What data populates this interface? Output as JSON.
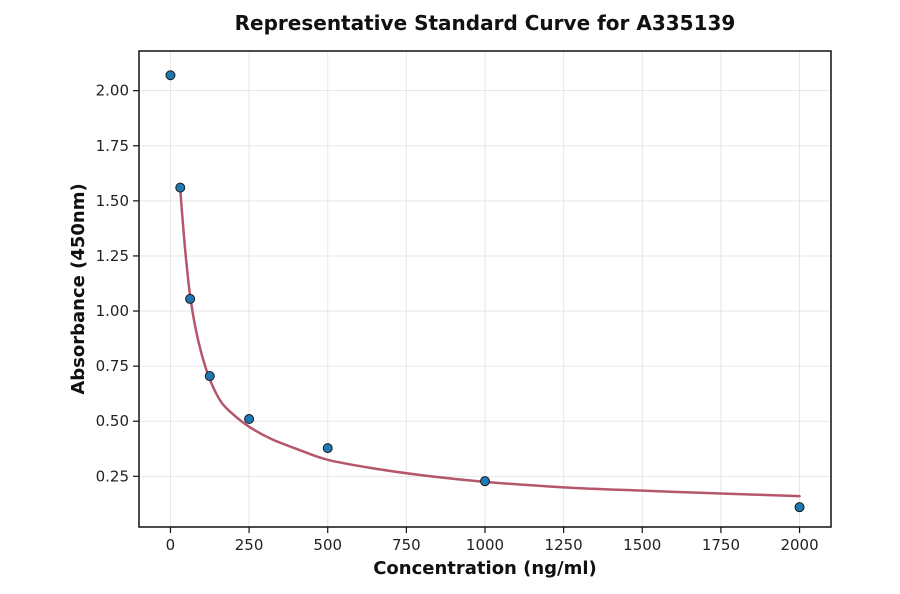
{
  "chart_data": {
    "type": "scatter",
    "title": "Representative Standard Curve for A335139",
    "xlabel": "Concentration (ng/ml)",
    "ylabel": "Absorbance (450nm)",
    "xlim": [
      -100,
      2100
    ],
    "ylim": [
      0.02,
      2.18
    ],
    "xticks": [
      0,
      250,
      500,
      750,
      1000,
      1250,
      1500,
      1750,
      2000
    ],
    "yticks": [
      0.25,
      0.5,
      0.75,
      1.0,
      1.25,
      1.5,
      1.75,
      2.0
    ],
    "xtick_labels": [
      "0",
      "250",
      "500",
      "750",
      "1000",
      "1250",
      "1500",
      "1750",
      "2000"
    ],
    "ytick_labels": [
      "0.25",
      "0.50",
      "0.75",
      "1.00",
      "1.25",
      "1.50",
      "1.75",
      "2.00"
    ],
    "grid": true,
    "points": {
      "x": [
        0,
        31.25,
        62.5,
        125,
        250,
        500,
        1000,
        2000
      ],
      "y": [
        2.07,
        1.56,
        1.055,
        0.705,
        0.51,
        0.378,
        0.228,
        0.11
      ],
      "color": "#1f77b4"
    },
    "fit_curve": {
      "x": [
        31.25,
        40,
        50,
        62.5,
        80,
        100,
        125,
        160,
        200,
        250,
        320,
        400,
        500,
        650,
        800,
        1000,
        1250,
        1500,
        1750,
        2000
      ],
      "y": [
        1.55,
        1.39,
        1.23,
        1.07,
        0.92,
        0.8,
        0.69,
        0.59,
        0.53,
        0.475,
        0.42,
        0.375,
        0.325,
        0.285,
        0.255,
        0.225,
        0.2,
        0.185,
        0.172,
        0.16
      ],
      "color": "#b5566b"
    }
  }
}
